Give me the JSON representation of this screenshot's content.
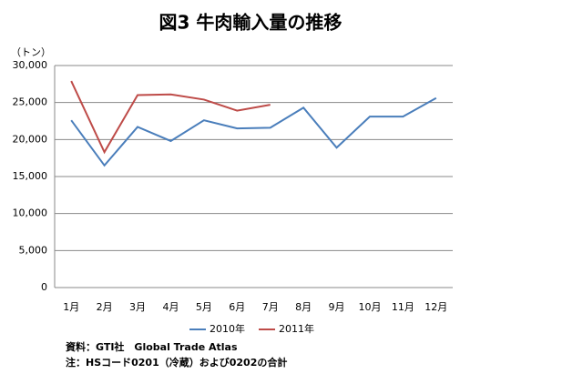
{
  "chart_data": {
    "type": "line",
    "title": "図3 牛肉輸入量の推移",
    "y_label": "（トン）",
    "categories": [
      "1月",
      "2月",
      "3月",
      "4月",
      "5月",
      "6月",
      "7月",
      "8月",
      "9月",
      "10月",
      "11月",
      "12月"
    ],
    "series": [
      {
        "name": "2010年",
        "color": "#4a7ebb",
        "values": [
          22600,
          16500,
          21700,
          19800,
          22600,
          21500,
          21600,
          24300,
          18900,
          23100,
          23100,
          25600
        ]
      },
      {
        "name": "2011年",
        "color": "#be4b48",
        "values": [
          27900,
          18300,
          26000,
          26100,
          25400,
          23900,
          24700,
          null,
          null,
          null,
          null,
          null
        ]
      }
    ],
    "ylim": [
      0,
      30000
    ],
    "yticks": [
      0,
      {
        "value": 5000,
        "label": "5,000"
      },
      {
        "value": 10000,
        "label": "10,000"
      },
      {
        "value": 15000,
        "label": "15,000"
      },
      {
        "value": 20000,
        "label": "20,000"
      },
      {
        "value": 25000,
        "label": "25,000"
      },
      {
        "value": 30000,
        "label": "30,000"
      }
    ],
    "grid": true,
    "legend": "bottom",
    "notes": [
      "資料：GTI社　Global Trade Atlas",
      "注：HSコード0201（冷蔵）および0202の合計"
    ]
  }
}
